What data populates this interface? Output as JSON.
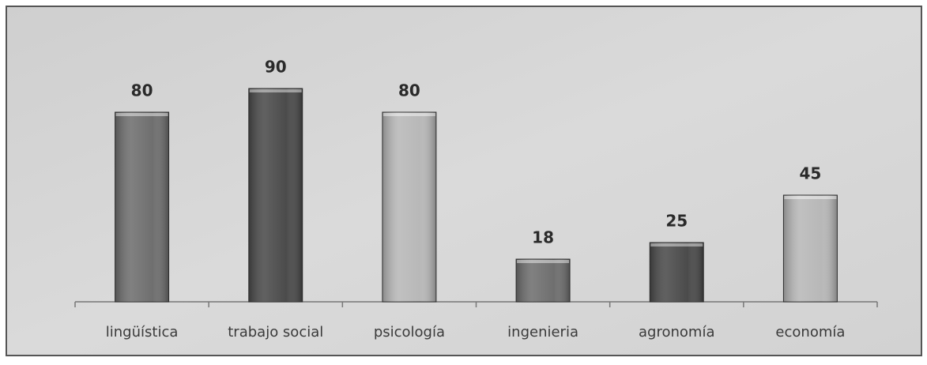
{
  "chart_data": {
    "type": "bar",
    "categories": [
      "lingüística",
      "trabajo social",
      "psicología",
      "ingenieria",
      "agronomía",
      "economía"
    ],
    "values": [
      80,
      90,
      80,
      18,
      25,
      45
    ],
    "colors": [
      "#6f6f6f",
      "#4b4b4b",
      "#b8b8b8",
      "#6f6f6f",
      "#4b4b4b",
      "#b8b8b8"
    ],
    "ylim": [
      0,
      100
    ],
    "data_labels": true
  }
}
